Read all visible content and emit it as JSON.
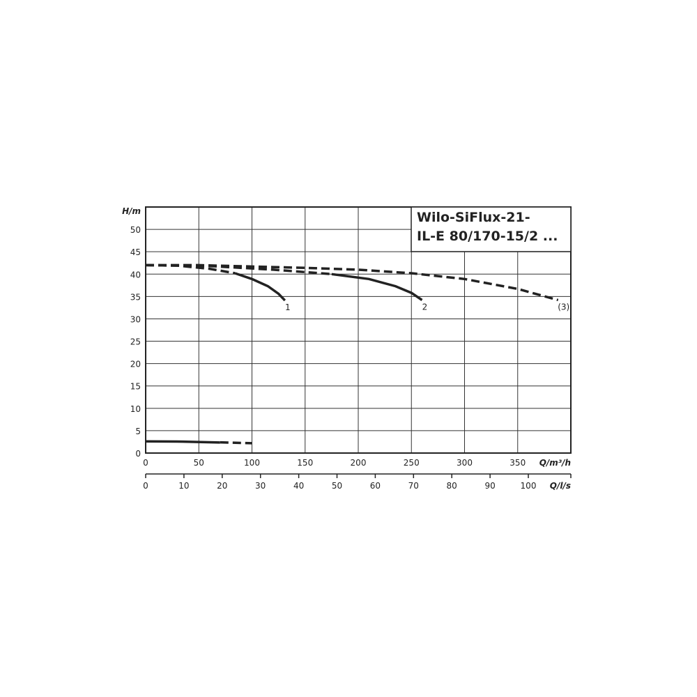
{
  "chart_data": {
    "type": "line",
    "title": "Wilo-SiFlux-21-\nIL-E 80/170-15/2 ...",
    "title_lines": [
      "Wilo-SiFlux-21-",
      "IL-E 80/170-15/2 ..."
    ],
    "ylabel": "H/m",
    "xlabel": "Q/m³/h",
    "x2label": "Q/l/s",
    "xlim": [
      0,
      400
    ],
    "ylim": [
      0,
      55
    ],
    "x_ticks": [
      0,
      50,
      100,
      150,
      200,
      250,
      300,
      350
    ],
    "y_ticks": [
      0,
      5,
      10,
      15,
      20,
      25,
      30,
      35,
      40,
      45,
      50
    ],
    "x2_ticks": [
      0,
      10,
      20,
      30,
      40,
      50,
      60,
      70,
      80,
      90,
      100
    ],
    "grid": true,
    "color": "#222222",
    "series": [
      {
        "name": "1",
        "dashed": [
          [
            0,
            42
          ],
          [
            30,
            41.9
          ],
          [
            60,
            41.2
          ],
          [
            84,
            40.2
          ]
        ],
        "solid": [
          [
            84,
            40.2
          ],
          [
            100,
            38.9
          ],
          [
            115,
            37.3
          ],
          [
            125,
            35.6
          ],
          [
            131,
            34.1
          ]
        ]
      },
      {
        "name": "2",
        "dashed": [
          [
            0,
            42
          ],
          [
            60,
            41.8
          ],
          [
            120,
            41
          ],
          [
            175,
            40
          ]
        ],
        "solid": [
          [
            175,
            40
          ],
          [
            210,
            38.9
          ],
          [
            235,
            37.3
          ],
          [
            250,
            35.8
          ],
          [
            260,
            34.2
          ]
        ]
      },
      {
        "name": "(3)",
        "dashed": [
          [
            0,
            42
          ],
          [
            50,
            42
          ],
          [
            100,
            41.7
          ],
          [
            150,
            41.4
          ],
          [
            200,
            41
          ],
          [
            250,
            40.2
          ],
          [
            300,
            38.9
          ],
          [
            350,
            36.7
          ],
          [
            388,
            34.2
          ]
        ],
        "solid": []
      },
      {
        "name": "",
        "dashed": [
          [
            70,
            2.4
          ],
          [
            100,
            2.2
          ]
        ],
        "solid": [
          [
            0,
            2.6
          ],
          [
            35,
            2.55
          ],
          [
            70,
            2.35
          ]
        ]
      }
    ]
  }
}
